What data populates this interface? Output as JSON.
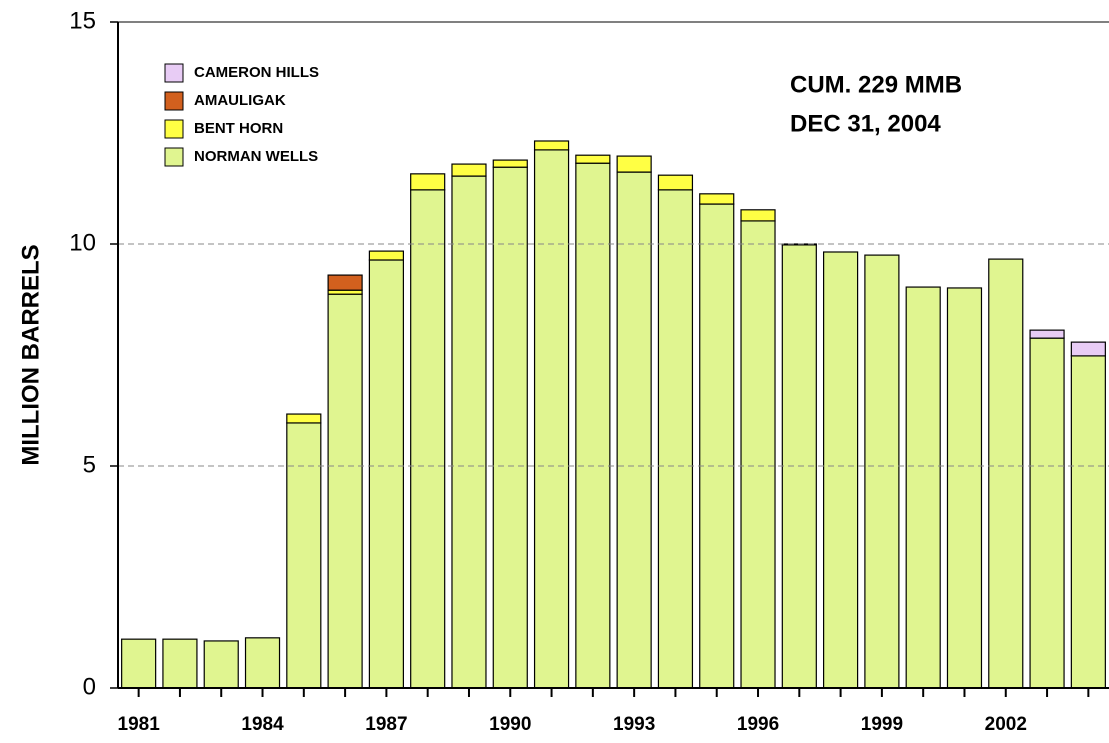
{
  "chart_data": {
    "type": "stacked_bar",
    "ylabel": "MILLION BARRELS",
    "annotations": [
      "CUM. 229 MMB",
      "DEC 31, 2004"
    ],
    "categories": [
      "1981",
      null,
      null,
      "1984",
      null,
      null,
      "1987",
      null,
      null,
      "1990",
      null,
      null,
      "1993",
      null,
      null,
      "1996",
      null,
      null,
      "1999",
      null,
      null,
      "2002",
      null,
      null
    ],
    "series": [
      {
        "name": "NORMAN WELLS",
        "color": "#e0f590",
        "values": [
          1.1,
          1.1,
          1.06,
          1.13,
          5.97,
          8.87,
          9.64,
          11.22,
          11.53,
          11.73,
          12.12,
          11.82,
          11.62,
          11.22,
          10.9,
          10.52,
          9.98,
          9.82,
          9.75,
          9.03,
          9.01,
          9.66,
          7.88,
          7.48
        ]
      },
      {
        "name": "BENT HORN",
        "color": "#ffff44",
        "values": [
          0,
          0,
          0,
          0,
          0.2,
          0.09,
          0.2,
          0.36,
          0.27,
          0.16,
          0.2,
          0.18,
          0.36,
          0.33,
          0.23,
          0.25,
          0.02,
          0,
          0,
          0,
          0,
          0,
          0,
          0
        ]
      },
      {
        "name": "AMAULIGAK",
        "color": "#d2601e",
        "values": [
          0,
          0,
          0,
          0,
          0,
          0.34,
          0,
          0,
          0,
          0,
          0,
          0,
          0,
          0,
          0,
          0,
          0,
          0,
          0,
          0,
          0,
          0,
          0,
          0
        ]
      },
      {
        "name": "CAMERON HILLS",
        "color": "#e8ccf5",
        "values": [
          0,
          0,
          0,
          0,
          0,
          0,
          0,
          0,
          0,
          0,
          0,
          0,
          0,
          0,
          0,
          0,
          0,
          0,
          0,
          0,
          0,
          0,
          0.18,
          0.31
        ]
      }
    ],
    "ylim": [
      0,
      15
    ],
    "yticks": [
      0,
      5,
      10,
      15
    ],
    "grid": true
  }
}
